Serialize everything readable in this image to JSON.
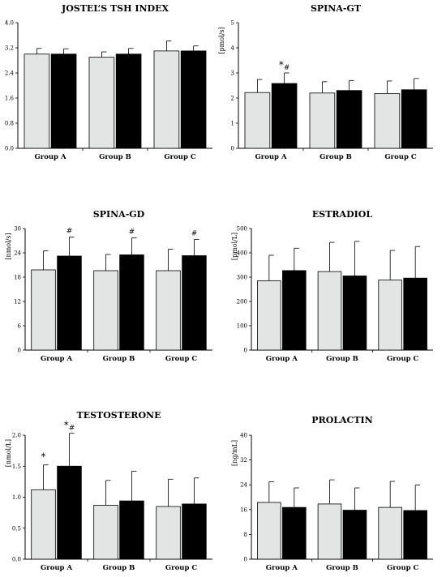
{
  "chart_data": [
    {
      "type": "bar",
      "title": "JOSTEL’S TSH INDEX",
      "ylabel": "",
      "ylim": [
        0,
        4.0
      ],
      "yticks": [
        "0.0",
        "0.8",
        "1.6",
        "2.4",
        "3.2",
        "4.0"
      ],
      "categories": [
        "Group A",
        "Group B",
        "Group C"
      ],
      "series": [
        {
          "color": "#e3e4e4",
          "values": [
            3.0,
            2.9,
            3.1
          ],
          "errors": [
            0.18,
            0.17,
            0.32
          ]
        },
        {
          "color": "#000000",
          "values": [
            3.0,
            3.0,
            3.1
          ],
          "errors": [
            0.17,
            0.18,
            0.16
          ]
        }
      ],
      "annotations": []
    },
    {
      "type": "bar",
      "title": "SPINA-GT",
      "ylabel": "[pmol/s]",
      "ylim": [
        0,
        5
      ],
      "yticks": [
        "0",
        "1",
        "2",
        "3",
        "4",
        "5"
      ],
      "categories": [
        "Group A",
        "Group B",
        "Group C"
      ],
      "series": [
        {
          "color": "#e3e4e4",
          "values": [
            2.22,
            2.2,
            2.18
          ],
          "errors": [
            0.52,
            0.45,
            0.5
          ]
        },
        {
          "color": "#000000",
          "values": [
            2.58,
            2.3,
            2.33
          ],
          "errors": [
            0.42,
            0.4,
            0.45
          ]
        }
      ],
      "annotations": [
        {
          "group": 0,
          "series": 1,
          "text": "*#"
        }
      ]
    },
    {
      "type": "bar",
      "title": "SPINA-GD",
      "ylabel": "[nmol/s]",
      "ylim": [
        0,
        30
      ],
      "yticks": [
        "0",
        "6",
        "12",
        "18",
        "24",
        "30"
      ],
      "categories": [
        "Group A",
        "Group B",
        "Group C"
      ],
      "series": [
        {
          "color": "#e3e4e4",
          "values": [
            19.8,
            19.6,
            19.6
          ],
          "errors": [
            4.7,
            4.0,
            5.3
          ]
        },
        {
          "color": "#000000",
          "values": [
            23.2,
            23.5,
            23.3
          ],
          "errors": [
            4.7,
            4.2,
            4.0
          ]
        }
      ],
      "annotations": [
        {
          "group": 0,
          "series": 1,
          "text": "#"
        },
        {
          "group": 1,
          "series": 1,
          "text": "#"
        },
        {
          "group": 2,
          "series": 1,
          "text": "#"
        }
      ]
    },
    {
      "type": "bar",
      "title": "ESTRADIOL",
      "ylabel": "[pmol/L]",
      "ylim": [
        0,
        500
      ],
      "yticks": [
        "0",
        "100",
        "200",
        "300",
        "400",
        "500"
      ],
      "categories": [
        "Group A",
        "Group B",
        "Group C"
      ],
      "series": [
        {
          "color": "#e3e4e4",
          "values": [
            285,
            323,
            288
          ],
          "errors": [
            105,
            120,
            122
          ]
        },
        {
          "color": "#000000",
          "values": [
            327,
            305,
            296
          ],
          "errors": [
            92,
            142,
            130
          ]
        }
      ],
      "annotations": []
    },
    {
      "type": "bar",
      "title": "TESTOSTERONE",
      "ylabel": "[nmol/L]",
      "ylim": [
        0,
        2.0
      ],
      "yticks": [
        "0.0",
        "0.5",
        "1.0",
        "1.5",
        "2.0"
      ],
      "categories": [
        "Group A",
        "Group B",
        "Group C"
      ],
      "series": [
        {
          "color": "#e3e4e4",
          "values": [
            1.12,
            0.87,
            0.85
          ],
          "errors": [
            0.4,
            0.4,
            0.44
          ]
        },
        {
          "color": "#000000",
          "values": [
            1.5,
            0.94,
            0.89
          ],
          "errors": [
            0.53,
            0.48,
            0.42
          ]
        }
      ],
      "annotations": [
        {
          "group": 0,
          "series": 0,
          "text": "*"
        },
        {
          "group": 0,
          "series": 1,
          "text": "*#"
        }
      ]
    },
    {
      "type": "bar",
      "title": "PROLACTIN",
      "ylabel": "[ng/mL]",
      "ylim": [
        0,
        40
      ],
      "yticks": [
        "0",
        "8",
        "16",
        "24",
        "32",
        "40"
      ],
      "categories": [
        "Group A",
        "Group B",
        "Group C"
      ],
      "series": [
        {
          "color": "#e3e4e4",
          "values": [
            18.3,
            17.8,
            16.7
          ],
          "errors": [
            6.7,
            7.8,
            8.4
          ]
        },
        {
          "color": "#000000",
          "values": [
            16.7,
            15.8,
            15.7
          ],
          "errors": [
            6.3,
            7.2,
            8.2
          ]
        }
      ],
      "annotations": []
    }
  ]
}
